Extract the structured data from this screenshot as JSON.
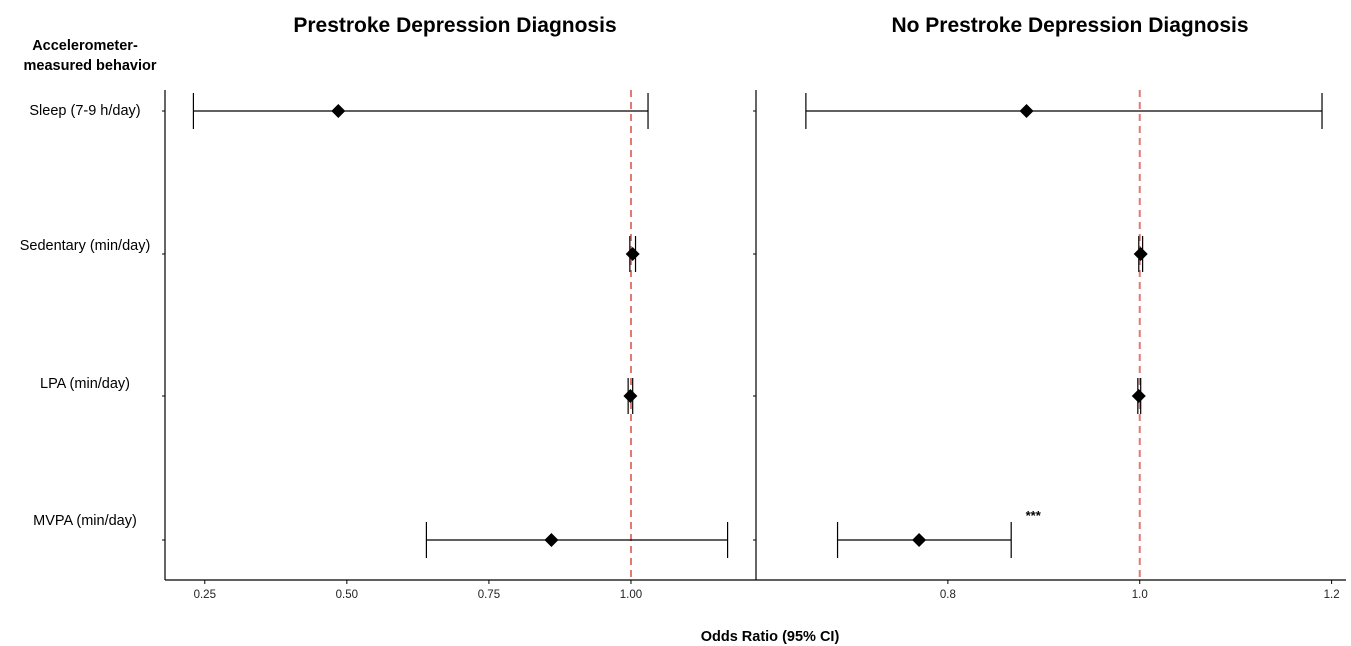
{
  "row_header": [
    "Accelerometer-",
    "measured behavior"
  ],
  "xlabel": "Odds Ratio (95% CI)",
  "colors": {
    "marker": "#000000",
    "reference_line": "#e07a74",
    "axis": "#000000"
  },
  "chart_data": [
    {
      "type": "forest",
      "title": "Prestroke Depression Diagnosis",
      "xlim": [
        0.18,
        1.22
      ],
      "xticks": [
        "0.25",
        "0.50",
        "0.75",
        "1.00"
      ],
      "reference_line": 1.0,
      "categories": [
        "Sleep (7-9 h/day)",
        "Sedentary (min/day)",
        "LPA (min/day)",
        "MVPA (min/day)"
      ],
      "estimates": [
        {
          "label": "Sleep (7-9 h/day)",
          "or": 0.485,
          "lower": 0.23,
          "upper": 1.03,
          "annotation": ""
        },
        {
          "label": "Sedentary (min/day)",
          "or": 1.003,
          "lower": 0.998,
          "upper": 1.008,
          "annotation": ""
        },
        {
          "label": "LPA (min/day)",
          "or": 0.999,
          "lower": 0.995,
          "upper": 1.003,
          "annotation": ""
        },
        {
          "label": "MVPA (min/day)",
          "or": 0.86,
          "lower": 0.64,
          "upper": 1.17,
          "annotation": ""
        }
      ]
    },
    {
      "type": "forest",
      "title": "No Prestroke Depression Diagnosis",
      "xlim": [
        0.6,
        1.215
      ],
      "xticks": [
        "0.8",
        "1.0",
        "1.2"
      ],
      "reference_line": 1.0,
      "categories": [
        "Sleep (7-9 h/day)",
        "Sedentary (min/day)",
        "LPA (min/day)",
        "MVPA (min/day)"
      ],
      "estimates": [
        {
          "label": "Sleep (7-9 h/day)",
          "or": 0.882,
          "lower": 0.652,
          "upper": 1.19,
          "annotation": ""
        },
        {
          "label": "Sedentary (min/day)",
          "or": 1.001,
          "lower": 0.999,
          "upper": 1.003,
          "annotation": ""
        },
        {
          "label": "LPA (min/day)",
          "or": 0.999,
          "lower": 0.998,
          "upper": 1.001,
          "annotation": ""
        },
        {
          "label": "MVPA (min/day)",
          "or": 0.77,
          "lower": 0.685,
          "upper": 0.866,
          "annotation": "***"
        }
      ]
    }
  ]
}
